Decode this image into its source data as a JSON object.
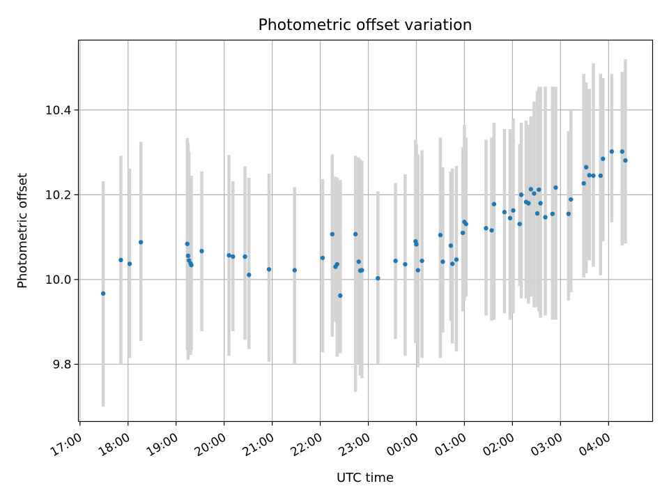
{
  "chart_data": {
    "type": "scatter",
    "title": "Photometric offset variation",
    "xlabel": "UTC time",
    "ylabel": "Photometric offset",
    "x_tick_labels": [
      "17:00",
      "18:00",
      "19:00",
      "20:00",
      "21:00",
      "22:00",
      "23:00",
      "00:00",
      "01:00",
      "02:00",
      "03:00",
      "04:00"
    ],
    "y_tick_labels": [
      "9.8",
      "10.0",
      "10.2",
      "10.4"
    ],
    "y_ticks": [
      9.8,
      10.0,
      10.2,
      10.4
    ],
    "xlim": [
      "16:58",
      "04:55"
    ],
    "ylim": [
      9.665,
      10.565
    ],
    "grid": true,
    "point_color": "#1f77b4",
    "errorbar_color": "#d3d3d3",
    "series": [
      {
        "x": [
          "17:29",
          "17:51",
          "18:02",
          "18:16",
          "19:14",
          "19:15",
          "19:16",
          "19:18",
          "19:19",
          "19:32",
          "20:06",
          "20:11",
          "20:26",
          "20:31",
          "20:56",
          "21:28",
          "22:03",
          "22:15",
          "22:19",
          "22:21",
          "22:25",
          "22:44",
          "22:48",
          "22:50",
          "22:52",
          "23:12",
          "23:34",
          "23:46",
          "23:59",
          "24:00",
          "24:02",
          "24:07",
          "24:30",
          "24:33",
          "24:43",
          "24:45",
          "24:50",
          "24:58",
          "25:00",
          "25:02",
          "25:27",
          "25:34",
          "25:37",
          "25:50",
          "25:57",
          "26:01",
          "26:09",
          "26:11",
          "26:17",
          "26:20",
          "26:23",
          "26:27",
          "26:31",
          "26:33",
          "26:35",
          "26:41",
          "26:50",
          "26:54",
          "27:10",
          "27:13",
          "27:29",
          "27:32",
          "27:36",
          "27:41",
          "27:50",
          "27:53",
          "28:04",
          "28:17",
          "28:21"
        ],
        "y": [
          9.967,
          10.046,
          10.037,
          10.088,
          10.084,
          10.056,
          10.045,
          10.038,
          10.034,
          10.067,
          10.057,
          10.054,
          10.054,
          10.011,
          10.024,
          10.022,
          10.051,
          10.107,
          10.03,
          10.036,
          9.962,
          10.107,
          10.042,
          10.021,
          10.022,
          10.003,
          10.044,
          10.036,
          10.09,
          10.083,
          10.022,
          10.044,
          10.105,
          10.042,
          10.08,
          10.037,
          10.047,
          10.11,
          10.136,
          10.131,
          10.121,
          10.116,
          10.178,
          10.159,
          10.145,
          10.163,
          10.131,
          10.2,
          10.183,
          10.18,
          10.213,
          10.203,
          10.156,
          10.212,
          10.18,
          10.147,
          10.155,
          10.217,
          10.155,
          10.189,
          10.227,
          10.265,
          10.246,
          10.245,
          10.245,
          10.285,
          10.302,
          10.302,
          10.281
        ],
        "err_low": [
          9.7,
          9.8,
          9.815,
          9.855,
          9.833,
          9.811,
          9.833,
          9.822,
          9.833,
          9.878,
          9.82,
          9.878,
          9.858,
          9.836,
          9.806,
          9.8,
          9.828,
          9.865,
          9.9,
          9.818,
          9.826,
          9.735,
          9.8,
          9.773,
          9.767,
          9.8,
          9.86,
          9.82,
          9.85,
          9.85,
          9.793,
          9.815,
          9.815,
          9.875,
          9.902,
          9.849,
          9.83,
          9.925,
          9.95,
          9.96,
          9.915,
          9.903,
          9.905,
          9.92,
          9.905,
          9.92,
          9.985,
          9.955,
          9.955,
          9.943,
          9.96,
          9.934,
          9.935,
          9.925,
          9.91,
          9.915,
          9.905,
          9.905,
          9.95,
          9.97,
          10.005,
          10.015,
          10.045,
          10.03,
          10.01,
          10.09,
          10.135,
          10.08,
          10.085
        ],
        "err_high": [
          10.232,
          10.292,
          10.262,
          10.325,
          10.334,
          10.322,
          10.302,
          10.244,
          10.245,
          10.255,
          10.294,
          10.232,
          10.267,
          10.24,
          10.25,
          10.218,
          10.237,
          10.295,
          10.243,
          10.24,
          10.235,
          10.292,
          10.288,
          10.283,
          10.28,
          10.208,
          10.228,
          10.248,
          10.33,
          10.32,
          10.295,
          10.305,
          10.335,
          10.265,
          10.255,
          10.262,
          10.268,
          10.312,
          10.365,
          10.335,
          10.33,
          10.335,
          10.37,
          10.355,
          10.355,
          10.38,
          10.32,
          10.37,
          10.375,
          10.365,
          10.385,
          10.42,
          10.445,
          10.455,
          10.455,
          10.455,
          10.455,
          10.455,
          10.35,
          10.4,
          10.485,
          10.465,
          10.45,
          10.51,
          10.485,
          10.475,
          10.485,
          10.49,
          10.52
        ]
      }
    ]
  }
}
